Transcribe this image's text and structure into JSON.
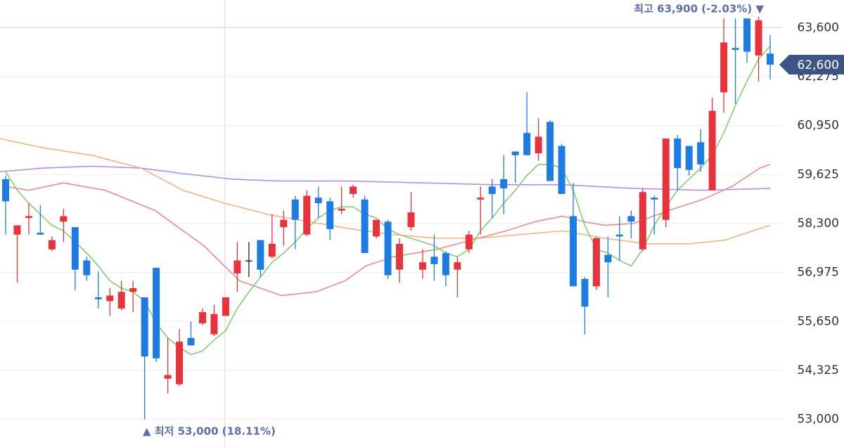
{
  "chart_data": {
    "type": "candlestick",
    "ylim": [
      52250,
      64350
    ],
    "yticks": [
      {
        "value": 53000,
        "label": "53,000"
      },
      {
        "value": 54325,
        "label": "54,325"
      },
      {
        "value": 55650,
        "label": "55,650"
      },
      {
        "value": 56975,
        "label": "56,975"
      },
      {
        "value": 58300,
        "label": "58,300"
      },
      {
        "value": 59625,
        "label": "59,625"
      },
      {
        "value": 60950,
        "label": "60,950"
      },
      {
        "value": 62275,
        "label": "62,275"
      },
      {
        "value": 63600,
        "label": "63,600"
      }
    ],
    "grid": true,
    "up_color": "#e8323c",
    "down_color": "#1c7ce4",
    "flat_color": "#222222",
    "candles": [
      {
        "open": 59500,
        "high": 59600,
        "low": 58000,
        "close": 58900
      },
      {
        "open": 58000,
        "high": 58250,
        "low": 56700,
        "close": 58250
      },
      {
        "open": 58450,
        "high": 58850,
        "low": 58000,
        "close": 58500
      },
      {
        "open": 58050,
        "high": 58800,
        "low": 58000,
        "close": 58000
      },
      {
        "open": 57600,
        "high": 57950,
        "low": 57550,
        "close": 57850
      },
      {
        "open": 58350,
        "high": 58700,
        "low": 57800,
        "close": 58500
      },
      {
        "open": 58200,
        "high": 58200,
        "low": 56500,
        "close": 57050
      },
      {
        "open": 57300,
        "high": 57400,
        "low": 56750,
        "close": 56900
      },
      {
        "open": 56300,
        "high": 57000,
        "low": 56000,
        "close": 56250
      },
      {
        "open": 56200,
        "high": 56550,
        "low": 55800,
        "close": 56350
      },
      {
        "open": 56000,
        "high": 56750,
        "low": 55950,
        "close": 56450
      },
      {
        "open": 56450,
        "high": 56750,
        "low": 55900,
        "close": 56550
      },
      {
        "open": 56300,
        "high": 56300,
        "low": 53000,
        "close": 54700
      },
      {
        "open": 57100,
        "high": 57100,
        "low": 54550,
        "close": 54650
      },
      {
        "open": 54100,
        "high": 55200,
        "low": 53700,
        "close": 54200
      },
      {
        "open": 53950,
        "high": 55450,
        "low": 53900,
        "close": 55100
      },
      {
        "open": 55200,
        "high": 55650,
        "low": 55000,
        "close": 55000
      },
      {
        "open": 55600,
        "high": 56000,
        "low": 55550,
        "close": 55900
      },
      {
        "open": 55300,
        "high": 56100,
        "low": 55250,
        "close": 55850
      },
      {
        "open": 55800,
        "high": 56300,
        "low": 55800,
        "close": 56300
      },
      {
        "open": 56950,
        "high": 57800,
        "low": 56450,
        "close": 57300
      },
      {
        "open": 57300,
        "high": 57800,
        "low": 56850,
        "close": 57300
      },
      {
        "open": 57850,
        "high": 57850,
        "low": 56850,
        "close": 57050
      },
      {
        "open": 57400,
        "high": 58550,
        "low": 57350,
        "close": 57750
      },
      {
        "open": 58200,
        "high": 58650,
        "low": 57700,
        "close": 58400
      },
      {
        "open": 58950,
        "high": 59050,
        "low": 57600,
        "close": 58400
      },
      {
        "open": 58000,
        "high": 59200,
        "low": 57950,
        "close": 59050
      },
      {
        "open": 59000,
        "high": 59300,
        "low": 58450,
        "close": 58850
      },
      {
        "open": 58900,
        "high": 59000,
        "low": 57850,
        "close": 58150
      },
      {
        "open": 58650,
        "high": 59300,
        "low": 58550,
        "close": 58700
      },
      {
        "open": 59100,
        "high": 59350,
        "low": 59000,
        "close": 59300
      },
      {
        "open": 58950,
        "high": 59050,
        "low": 57500,
        "close": 57500
      },
      {
        "open": 57950,
        "high": 58400,
        "low": 57900,
        "close": 58400
      },
      {
        "open": 58350,
        "high": 58400,
        "low": 56800,
        "close": 56900
      },
      {
        "open": 57050,
        "high": 57900,
        "low": 56700,
        "close": 57750
      },
      {
        "open": 58200,
        "high": 59150,
        "low": 58100,
        "close": 58600
      },
      {
        "open": 57050,
        "high": 57600,
        "low": 56800,
        "close": 57250
      },
      {
        "open": 57400,
        "high": 58000,
        "low": 56750,
        "close": 57200
      },
      {
        "open": 57500,
        "high": 57550,
        "low": 56600,
        "close": 56900
      },
      {
        "open": 57050,
        "high": 57400,
        "low": 56300,
        "close": 57250
      },
      {
        "open": 57600,
        "high": 58100,
        "low": 57500,
        "close": 58000
      },
      {
        "open": 58950,
        "high": 59300,
        "low": 58000,
        "close": 59000
      },
      {
        "open": 59300,
        "high": 59500,
        "low": 58450,
        "close": 59100
      },
      {
        "open": 59500,
        "high": 60150,
        "low": 58550,
        "close": 59250
      },
      {
        "open": 60250,
        "high": 60250,
        "low": 59400,
        "close": 60150
      },
      {
        "open": 60750,
        "high": 61850,
        "low": 60150,
        "close": 60150
      },
      {
        "open": 60200,
        "high": 61150,
        "low": 60000,
        "close": 60650
      },
      {
        "open": 61050,
        "high": 61100,
        "low": 59450,
        "close": 59450
      },
      {
        "open": 60400,
        "high": 60450,
        "low": 59100,
        "close": 59100
      },
      {
        "open": 58500,
        "high": 59400,
        "low": 56600,
        "close": 56600
      },
      {
        "open": 56800,
        "high": 56850,
        "low": 55300,
        "close": 56050
      },
      {
        "open": 56600,
        "high": 57950,
        "low": 56500,
        "close": 57900
      },
      {
        "open": 57450,
        "high": 57950,
        "low": 56300,
        "close": 57250
      },
      {
        "open": 58000,
        "high": 58500,
        "low": 57300,
        "close": 57950
      },
      {
        "open": 58500,
        "high": 58650,
        "low": 57900,
        "close": 58350
      },
      {
        "open": 57600,
        "high": 59250,
        "low": 57550,
        "close": 59150
      },
      {
        "open": 59000,
        "high": 59050,
        "low": 58000,
        "close": 58950
      },
      {
        "open": 58400,
        "high": 60600,
        "low": 58200,
        "close": 60600
      },
      {
        "open": 60600,
        "high": 60700,
        "low": 59200,
        "close": 59800
      },
      {
        "open": 60400,
        "high": 60400,
        "low": 59600,
        "close": 59750
      },
      {
        "open": 60500,
        "high": 60850,
        "low": 59700,
        "close": 59900
      },
      {
        "open": 59200,
        "high": 61700,
        "low": 59200,
        "close": 61350
      },
      {
        "open": 61850,
        "high": 63850,
        "low": 61300,
        "close": 63200
      },
      {
        "open": 63050,
        "high": 63850,
        "low": 61550,
        "close": 63000
      },
      {
        "open": 63850,
        "high": 63850,
        "low": 62650,
        "close": 62950
      },
      {
        "open": 62850,
        "high": 63900,
        "low": 62150,
        "close": 63800
      },
      {
        "open": 62900,
        "high": 63400,
        "low": 62200,
        "close": 62600
      }
    ],
    "lines": [
      {
        "color": "#b98af0",
        "x": [
          -0.5,
          3.2,
          7.4,
          11.7,
          15.3,
          19.6,
          23.8,
          29.9,
          36,
          42,
          48.1,
          54.2,
          60.2,
          66
        ],
        "values": [
          59700,
          59800,
          59850,
          59800,
          59650,
          59500,
          59450,
          59450,
          59400,
          59350,
          59350,
          59250,
          59200,
          59250
        ]
      },
      {
        "color": "#f5b47a",
        "x": [
          -0.5,
          3.2,
          7.4,
          11.7,
          15.3,
          18.9,
          22.6,
          26.2,
          29.9,
          33.5,
          37.2,
          40.8,
          44.4,
          48.1,
          51.7,
          55.4,
          59,
          62.1,
          64.5,
          66
        ],
        "values": [
          60600,
          60350,
          60150,
          59800,
          59200,
          58850,
          58550,
          58350,
          58150,
          58000,
          57900,
          57900,
          58000,
          58100,
          57900,
          57750,
          57750,
          57850,
          58100,
          58250
        ]
      },
      {
        "color": "#f28b8b",
        "x": [
          0,
          2,
          5,
          8.6,
          12.9,
          17.1,
          20.2,
          23.8,
          26.8,
          29.3,
          31.1,
          33.5,
          37.2,
          40.8,
          43.2,
          45.7,
          48.1,
          49.9,
          51.7,
          54.2,
          57.2,
          60.2,
          62.7,
          65.1,
          66
        ],
        "values": [
          59300,
          59200,
          59400,
          59200,
          58650,
          57700,
          56750,
          56350,
          56450,
          56750,
          57150,
          57400,
          57600,
          57900,
          58100,
          58350,
          58500,
          58350,
          58250,
          58300,
          58650,
          58950,
          59300,
          59800,
          59900
        ]
      },
      {
        "color": "#7fcf6f",
        "values": [
          59700,
          59200,
          58850,
          58550,
          58250,
          58100,
          57800,
          57500,
          57150,
          56750,
          56550,
          56450,
          56200,
          55600,
          55200,
          54950,
          54750,
          54850,
          55150,
          55400,
          56000,
          56450,
          56850,
          57250,
          57500,
          57800,
          58150,
          58450,
          58650,
          58750,
          58750,
          58550,
          58450,
          58150,
          58000,
          57900,
          57800,
          57700,
          57500,
          57400,
          57600,
          58100,
          58450,
          58850,
          59200,
          59600,
          59900,
          59900,
          59800,
          59200,
          58250,
          57600,
          57500,
          57300,
          57150,
          57600,
          58250,
          58750,
          59200,
          59500,
          59800,
          60150,
          60750,
          61500,
          62150,
          62750,
          63100
        ]
      }
    ],
    "high_annotation": "최고 63,900 (-2.03%) ▼",
    "low_annotation": "▲ 최저 53,000 (18.11%)",
    "last_price": {
      "value": 62600,
      "label": "62,600"
    }
  }
}
